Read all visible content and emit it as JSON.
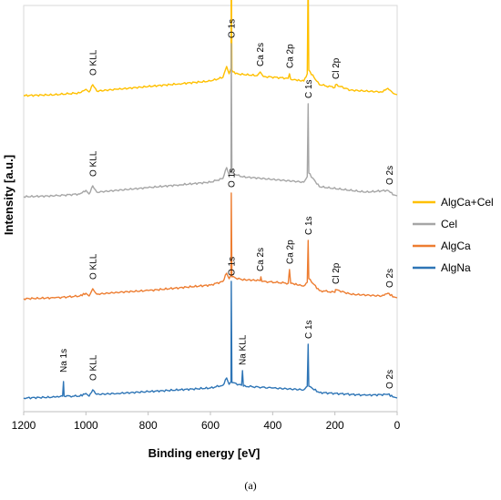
{
  "chart_data": {
    "type": "line",
    "xlabel": "Binding energy [eV]",
    "ylabel": "Intensity [a.u.]",
    "xlim": [
      1200,
      0
    ],
    "x_reversed": true,
    "xticks": [
      "1200",
      "1000",
      "800",
      "600",
      "400",
      "200",
      "0"
    ],
    "xtick_values": [
      1200,
      1000,
      800,
      600,
      400,
      200,
      0
    ],
    "grid": false,
    "legend_position": "right",
    "caption": "(a)",
    "series": [
      {
        "name": "AlgCa+Cel",
        "color": "#FFC000",
        "baseline": 78,
        "points": [
          [
            1200,
            0
          ],
          [
            1100,
            1
          ],
          [
            1020,
            3
          ],
          [
            1000,
            7
          ],
          [
            990,
            4
          ],
          [
            978,
            12
          ],
          [
            965,
            5
          ],
          [
            900,
            7
          ],
          [
            800,
            10
          ],
          [
            700,
            13
          ],
          [
            600,
            16
          ],
          [
            560,
            20
          ],
          [
            548,
            32
          ],
          [
            540,
            24
          ],
          [
            534,
            30
          ],
          [
            533,
            160
          ],
          [
            531,
            28
          ],
          [
            520,
            24
          ],
          [
            450,
            22
          ],
          [
            440,
            26
          ],
          [
            430,
            21
          ],
          [
            350,
            19
          ],
          [
            346,
            24
          ],
          [
            342,
            18
          ],
          [
            300,
            16
          ],
          [
            289,
            24
          ],
          [
            286,
            138
          ],
          [
            284,
            28
          ],
          [
            250,
            12
          ],
          [
            200,
            9
          ],
          [
            198,
            12
          ],
          [
            150,
            6
          ],
          [
            50,
            4
          ],
          [
            30,
            8
          ],
          [
            10,
            2
          ],
          [
            0,
            1
          ]
        ],
        "peak_labels": [
          {
            "text": "O KLL",
            "x": 978
          },
          {
            "text": "O 1s",
            "x": 533
          },
          {
            "text": "Ca 2s",
            "x": 440
          },
          {
            "text": "Ca 2p",
            "x": 346
          },
          {
            "text": "C 1s",
            "x": 286
          },
          {
            "text": "Cl 2p",
            "x": 198
          }
        ]
      },
      {
        "name": "Cel",
        "color": "#A6A6A6",
        "baseline": 74,
        "points": [
          [
            1200,
            0
          ],
          [
            1100,
            1
          ],
          [
            1020,
            3
          ],
          [
            1000,
            7
          ],
          [
            990,
            3
          ],
          [
            978,
            12
          ],
          [
            965,
            5
          ],
          [
            900,
            7
          ],
          [
            800,
            10
          ],
          [
            700,
            13
          ],
          [
            600,
            16
          ],
          [
            560,
            20
          ],
          [
            548,
            32
          ],
          [
            540,
            24
          ],
          [
            534,
            30
          ],
          [
            533,
            168
          ],
          [
            531,
            26
          ],
          [
            500,
            22
          ],
          [
            400,
            19
          ],
          [
            300,
            16
          ],
          [
            289,
            22
          ],
          [
            286,
            102
          ],
          [
            284,
            26
          ],
          [
            250,
            11
          ],
          [
            100,
            5
          ],
          [
            30,
            7
          ],
          [
            10,
            2
          ],
          [
            0,
            1
          ]
        ],
        "peak_labels": [
          {
            "text": "O KLL",
            "x": 978
          },
          {
            "text": "O 1s",
            "x": 533
          },
          {
            "text": "C 1s",
            "x": 286
          },
          {
            "text": "O 2s",
            "x": 25
          }
        ]
      },
      {
        "name": "AlgCa",
        "color": "#ED7D31",
        "baseline": 72,
        "points": [
          [
            1200,
            0
          ],
          [
            1100,
            1
          ],
          [
            1020,
            3
          ],
          [
            1000,
            6
          ],
          [
            990,
            3
          ],
          [
            978,
            11
          ],
          [
            965,
            5
          ],
          [
            900,
            7
          ],
          [
            800,
            9
          ],
          [
            700,
            12
          ],
          [
            600,
            15
          ],
          [
            560,
            19
          ],
          [
            548,
            28
          ],
          [
            540,
            22
          ],
          [
            534,
            26
          ],
          [
            533,
            116
          ],
          [
            531,
            24
          ],
          [
            500,
            21
          ],
          [
            440,
            20
          ],
          [
            438,
            24
          ],
          [
            435,
            19
          ],
          [
            350,
            17
          ],
          [
            346,
            32
          ],
          [
            342,
            17
          ],
          [
            300,
            14
          ],
          [
            289,
            18
          ],
          [
            286,
            64
          ],
          [
            284,
            22
          ],
          [
            250,
            9
          ],
          [
            200,
            7
          ],
          [
            198,
            10
          ],
          [
            150,
            5
          ],
          [
            50,
            3
          ],
          [
            30,
            6
          ],
          [
            10,
            2
          ],
          [
            0,
            1
          ]
        ],
        "peak_labels": [
          {
            "text": "O KLL",
            "x": 978
          },
          {
            "text": "O 1s",
            "x": 533
          },
          {
            "text": "Ca 2s",
            "x": 440
          },
          {
            "text": "Ca 2p",
            "x": 346
          },
          {
            "text": "C 1s",
            "x": 286
          },
          {
            "text": "Cl 2p",
            "x": 198
          },
          {
            "text": "O 2s",
            "x": 25
          }
        ]
      },
      {
        "name": "AlgNa",
        "color": "#2E75B6",
        "baseline": 78,
        "points": [
          [
            1200,
            0
          ],
          [
            1100,
            1
          ],
          [
            1075,
            2
          ],
          [
            1072,
            18
          ],
          [
            1070,
            2
          ],
          [
            1020,
            2
          ],
          [
            1000,
            5
          ],
          [
            990,
            2
          ],
          [
            978,
            9
          ],
          [
            965,
            4
          ],
          [
            900,
            5
          ],
          [
            800,
            7
          ],
          [
            700,
            9
          ],
          [
            600,
            11
          ],
          [
            560,
            14
          ],
          [
            548,
            22
          ],
          [
            540,
            15
          ],
          [
            534,
            18
          ],
          [
            533,
            128
          ],
          [
            531,
            17
          ],
          [
            500,
            14
          ],
          [
            497,
            30
          ],
          [
            494,
            13
          ],
          [
            400,
            11
          ],
          [
            300,
            9
          ],
          [
            289,
            13
          ],
          [
            286,
            59
          ],
          [
            284,
            13
          ],
          [
            250,
            6
          ],
          [
            100,
            3
          ],
          [
            30,
            4
          ],
          [
            10,
            1
          ],
          [
            0,
            0
          ]
        ],
        "peak_labels": [
          {
            "text": "Na 1s",
            "x": 1072
          },
          {
            "text": "O KLL",
            "x": 978
          },
          {
            "text": "O 1s",
            "x": 533
          },
          {
            "text": "Na KLL",
            "x": 497
          },
          {
            "text": "C 1s",
            "x": 286
          },
          {
            "text": "O 2s",
            "x": 25
          }
        ]
      }
    ],
    "legend_order": [
      "AlgCa+Cel",
      "Cel",
      "AlgCa",
      "AlgNa"
    ]
  }
}
